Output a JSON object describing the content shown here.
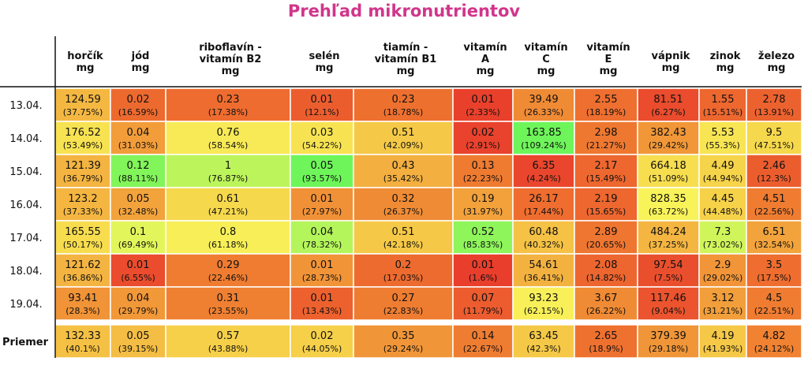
{
  "chart_data": {
    "type": "heatmap",
    "title": "Prehľad mikronutrientov",
    "columns": [
      [
        "horčík",
        "mg"
      ],
      [
        "jód",
        "mg"
      ],
      [
        "riboflavín -",
        "vitamín B2",
        "mg"
      ],
      [
        "selén",
        "mg"
      ],
      [
        "tiamín -",
        "vitamín B1",
        "mg"
      ],
      [
        "vitamín",
        "A",
        "mg"
      ],
      [
        "vitamín",
        "C",
        "mg"
      ],
      [
        "vitamín",
        "E",
        "mg"
      ],
      [
        "vápnik",
        "mg"
      ],
      [
        "zinok",
        "mg"
      ],
      [
        "železo",
        "mg"
      ]
    ],
    "rows": [
      {
        "label": "13.04.",
        "values": [
          "124.59",
          "0.02",
          "0.23",
          "0.01",
          "0.23",
          "0.01",
          "39.49",
          "2.55",
          "81.51",
          "1.55",
          "2.78"
        ],
        "percents": [
          "(37.75%)",
          "(16.59%)",
          "(17.38%)",
          "(12.1%)",
          "(18.78%)",
          "(2.33%)",
          "(26.33%)",
          "(18.19%)",
          "(6.27%)",
          "(15.51%)",
          "(13.91%)"
        ]
      },
      {
        "label": "14.04.",
        "values": [
          "176.52",
          "0.04",
          "0.76",
          "0.03",
          "0.51",
          "0.02",
          "163.85",
          "2.98",
          "382.43",
          "5.53",
          "9.5"
        ],
        "percents": [
          "(53.49%)",
          "(31.03%)",
          "(58.54%)",
          "(54.22%)",
          "(42.09%)",
          "(2.91%)",
          "(109.24%)",
          "(21.27%)",
          "(29.42%)",
          "(55.3%)",
          "(47.51%)"
        ]
      },
      {
        "label": "15.04.",
        "values": [
          "121.39",
          "0.12",
          "1",
          "0.05",
          "0.43",
          "0.13",
          "6.35",
          "2.17",
          "664.18",
          "4.49",
          "2.46"
        ],
        "percents": [
          "(36.79%)",
          "(88.11%)",
          "(76.87%)",
          "(93.57%)",
          "(35.42%)",
          "(22.23%)",
          "(4.24%)",
          "(15.49%)",
          "(51.09%)",
          "(44.94%)",
          "(12.3%)"
        ]
      },
      {
        "label": "16.04.",
        "values": [
          "123.2",
          "0.05",
          "0.61",
          "0.01",
          "0.32",
          "0.19",
          "26.17",
          "2.19",
          "828.35",
          "4.45",
          "4.51"
        ],
        "percents": [
          "(37.33%)",
          "(32.48%)",
          "(47.21%)",
          "(27.97%)",
          "(26.37%)",
          "(31.97%)",
          "(17.44%)",
          "(15.65%)",
          "(63.72%)",
          "(44.48%)",
          "(22.56%)"
        ]
      },
      {
        "label": "17.04.",
        "values": [
          "165.55",
          "0.1",
          "0.8",
          "0.04",
          "0.51",
          "0.52",
          "60.48",
          "2.89",
          "484.24",
          "7.3",
          "6.51"
        ],
        "percents": [
          "(50.17%)",
          "(69.49%)",
          "(61.18%)",
          "(78.32%)",
          "(42.18%)",
          "(85.83%)",
          "(40.32%)",
          "(20.65%)",
          "(37.25%)",
          "(73.02%)",
          "(32.54%)"
        ]
      },
      {
        "label": "18.04.",
        "values": [
          "121.62",
          "0.01",
          "0.29",
          "0.01",
          "0.2",
          "0.01",
          "54.61",
          "2.08",
          "97.54",
          "2.9",
          "3.5"
        ],
        "percents": [
          "(36.86%)",
          "(6.55%)",
          "(22.46%)",
          "(28.73%)",
          "(17.03%)",
          "(1.6%)",
          "(36.41%)",
          "(14.82%)",
          "(7.5%)",
          "(29.02%)",
          "(17.5%)"
        ]
      },
      {
        "label": "19.04.",
        "values": [
          "93.41",
          "0.04",
          "0.31",
          "0.01",
          "0.27",
          "0.07",
          "93.23",
          "3.67",
          "117.46",
          "3.12",
          "4.5"
        ],
        "percents": [
          "(28.3%)",
          "(29.79%)",
          "(23.55%)",
          "(13.43%)",
          "(22.83%)",
          "(11.79%)",
          "(62.15%)",
          "(26.22%)",
          "(9.04%)",
          "(31.21%)",
          "(22.51%)"
        ]
      }
    ],
    "average": {
      "label": "Priemer",
      "values": [
        "132.33",
        "0.05",
        "0.57",
        "0.02",
        "0.35",
        "0.14",
        "63.45",
        "2.65",
        "379.39",
        "4.19",
        "4.82"
      ],
      "percents": [
        "(40.1%)",
        "(39.15%)",
        "(43.88%)",
        "(44.05%)",
        "(29.24%)",
        "(22.67%)",
        "(42.3%)",
        "(18.9%)",
        "(29.18%)",
        "(41.93%)",
        "(24.12%)"
      ]
    },
    "color_scale": {
      "low": "#e8392c",
      "mid_low": "#ef7a30",
      "mid": "#f6d44a",
      "mid_high": "#f9f55b",
      "high": "#6ef55a"
    }
  }
}
